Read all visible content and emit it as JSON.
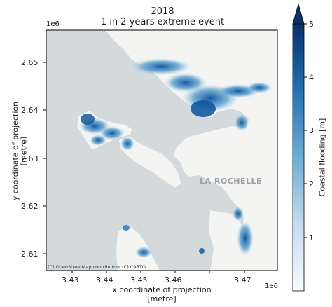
{
  "title": {
    "line1": "2018",
    "line2": "1 in 2 years extreme event"
  },
  "axes": {
    "xlabel_line1": "x coordinate of projection",
    "xlabel_line2": "[metre]",
    "ylabel_line1": "y coordinate of projection",
    "ylabel_line2": "[metre]",
    "x_offset": "1e6",
    "y_offset": "1e6",
    "x_ticks": [
      "3.43",
      "3.44",
      "3.45",
      "3.46",
      "3.47"
    ],
    "y_ticks": [
      "2.65",
      "2.64",
      "2.63",
      "2.62",
      "2.61"
    ]
  },
  "colorbar": {
    "label": "Coastal flooding [m]",
    "ticks": [
      "1",
      "2",
      "3",
      "4",
      "5"
    ],
    "colormap": "Blues",
    "extend": "max",
    "vmin": 0,
    "vmax": 5
  },
  "map": {
    "attribution": "(C) OpenStreetMap contributors (C) CARTO",
    "place_label": "LA ROCHELLE",
    "sea_color": "#d4dadc",
    "land_color": "#f4f4f2",
    "flood_color_low": "#c6dbef",
    "flood_color_high": "#08306b"
  }
}
